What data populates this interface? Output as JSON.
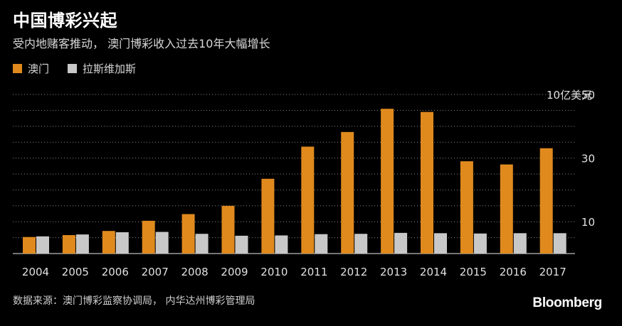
{
  "title": "中国博彩兴起",
  "subtitle": "受内地赌客推动， 澳门博彩收入过去10年大幅增长",
  "source": "数据来源：澳门博彩监察协调局， 内华达州博彩管理局",
  "logo": "Bloomberg",
  "colors": {
    "macau": "#e08a1e",
    "vegas": "#c8c8c8",
    "grid": "#888888",
    "axis": "#bbbbbb"
  },
  "chart_data": {
    "type": "bar",
    "title": "中国博彩兴起",
    "subtitle": "受内地赌客推动， 澳门博彩收入过去10年大幅增长",
    "unit_label": "10亿美元",
    "categories": [
      "2004",
      "2005",
      "2006",
      "2007",
      "2008",
      "2009",
      "2010",
      "2011",
      "2012",
      "2013",
      "2014",
      "2015",
      "2016",
      "2017"
    ],
    "series": [
      {
        "name": "澳门",
        "values": [
          5.2,
          5.8,
          7.1,
          10.3,
          12.4,
          15.0,
          23.5,
          33.6,
          38.2,
          45.5,
          44.5,
          29.0,
          28.0,
          33.1
        ]
      },
      {
        "name": "拉斯维加斯",
        "values": [
          5.4,
          6.0,
          6.7,
          6.8,
          6.2,
          5.6,
          5.7,
          6.1,
          6.2,
          6.5,
          6.4,
          6.3,
          6.4,
          6.4
        ]
      }
    ],
    "yticks": [
      10,
      30,
      50
    ],
    "ylim": [
      0,
      50
    ],
    "grid": true,
    "legend_position": "top-left"
  }
}
